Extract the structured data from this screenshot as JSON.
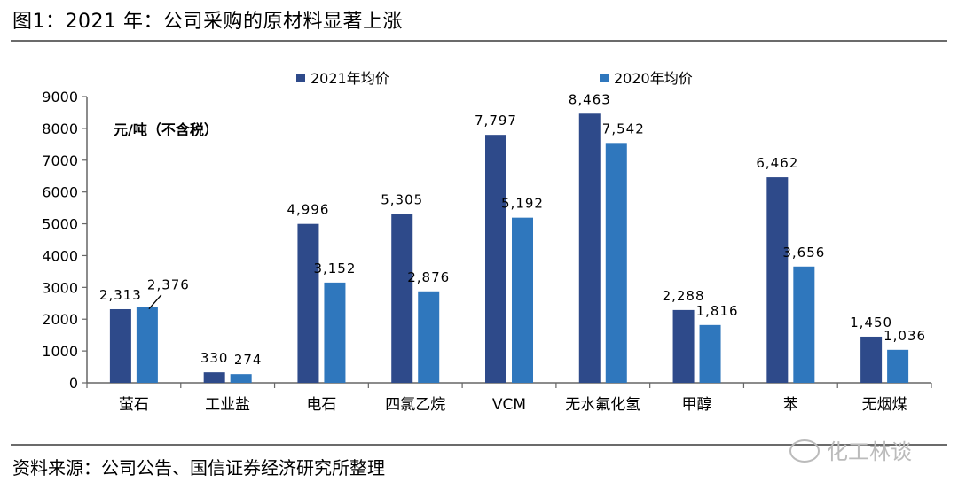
{
  "header": {
    "title": "图1：2021 年：公司采购的原材料显著上涨"
  },
  "footer": {
    "source": "资料来源：公司公告、国信证券经济研究所整理",
    "watermark": "化工林谈"
  },
  "colors": {
    "series_2021": "#2e4a8a",
    "series_2020": "#2f77bd",
    "axis": "#666666"
  },
  "chart_data": {
    "type": "bar",
    "title": "",
    "unit_label": "元/吨（不含税）",
    "xlabel": "",
    "ylabel": "",
    "ylim": [
      0,
      9000
    ],
    "yticks": [
      0,
      1000,
      2000,
      3000,
      4000,
      5000,
      6000,
      7000,
      8000,
      9000
    ],
    "grid": false,
    "legend": "top",
    "categories": [
      "萤石",
      "工业盐",
      "电石",
      "四氯乙烷",
      "VCM",
      "无水氟化氢",
      "甲醇",
      "苯",
      "无烟煤"
    ],
    "series": [
      {
        "name": "2021年均价",
        "values": [
          2313,
          330,
          4996,
          5305,
          7797,
          8463,
          2288,
          6462,
          1450
        ],
        "labels": [
          "2,313",
          "330",
          "4,996",
          "5,305",
          "7,797",
          "8,463",
          "2,288",
          "6,462",
          "1,450"
        ]
      },
      {
        "name": "2020年均价",
        "values": [
          2376,
          274,
          3152,
          2876,
          5192,
          7542,
          1816,
          3656,
          1036
        ],
        "labels": [
          "2,376",
          "274",
          "3,152",
          "2,876",
          "5,192",
          "7,542",
          "1,816",
          "3,656",
          "1,036"
        ]
      }
    ]
  }
}
